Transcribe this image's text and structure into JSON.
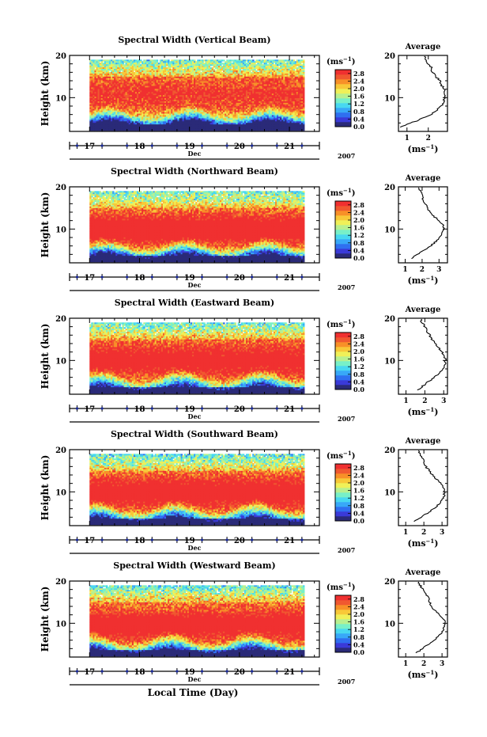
{
  "chart_data": {
    "type": "heatmap",
    "xlabel": "Local Time (Day)",
    "month_label": "Dec",
    "year_label": "2007",
    "x_ticks": [
      "17",
      "18",
      "19",
      "20",
      "21"
    ],
    "xlim": [
      16.6,
      21.6
    ],
    "data_xlim": [
      17.0,
      21.3
    ],
    "ylabel": "Height (km)",
    "ylim": [
      2,
      20
    ],
    "y_ticks": [
      10,
      20
    ],
    "unit_label": "(ms",
    "unit_exp": "−1",
    "colorbar": {
      "ticks": [
        "0.0",
        "0.4",
        "0.8",
        "1.2",
        "1.6",
        "2.0",
        "2.4",
        "2.8"
      ],
      "tick_values": [
        0,
        0.4,
        0.8,
        1.2,
        1.6,
        2.0,
        2.4,
        2.8
      ],
      "range": [
        0,
        3.0
      ],
      "colors": [
        "#2a2a78",
        "#3a3ad8",
        "#2f6ff0",
        "#38a8f8",
        "#48d8f0",
        "#78f0c8",
        "#b8f090",
        "#f0f058",
        "#f8c838",
        "#f89028",
        "#f05830",
        "#f03030"
      ]
    },
    "panels": [
      {
        "title": "Spectral Width (Vertical Beam)",
        "avg_title": "Average",
        "avg_xlim": [
          0.6,
          2.9
        ],
        "avg_x_ticks": [
          1,
          2
        ],
        "avg_profile": [
          {
            "h": 3.0,
            "v": 0.7
          },
          {
            "h": 4.0,
            "v": 1.2
          },
          {
            "h": 5.0,
            "v": 1.7
          },
          {
            "h": 6.0,
            "v": 2.1
          },
          {
            "h": 7.0,
            "v": 2.4
          },
          {
            "h": 8.0,
            "v": 2.6
          },
          {
            "h": 9.0,
            "v": 2.7
          },
          {
            "h": 10.0,
            "v": 2.75
          },
          {
            "h": 11.0,
            "v": 2.8
          },
          {
            "h": 12.0,
            "v": 2.75
          },
          {
            "h": 13.0,
            "v": 2.6
          },
          {
            "h": 14.0,
            "v": 2.55
          },
          {
            "h": 15.0,
            "v": 2.35
          },
          {
            "h": 16.0,
            "v": 2.2
          },
          {
            "h": 17.0,
            "v": 2.15
          },
          {
            "h": 18.0,
            "v": 2.0
          },
          {
            "h": 19.0,
            "v": 1.9
          },
          {
            "h": 19.8,
            "v": 1.8
          }
        ]
      },
      {
        "title": "Spectral Width (Northward Beam)",
        "avg_title": "Average",
        "avg_xlim": [
          0.6,
          3.5
        ],
        "avg_x_ticks": [
          1,
          2,
          3
        ],
        "avg_profile": [
          {
            "h": 3.0,
            "v": 1.4
          },
          {
            "h": 4.0,
            "v": 1.7
          },
          {
            "h": 5.0,
            "v": 2.1
          },
          {
            "h": 6.0,
            "v": 2.5
          },
          {
            "h": 7.0,
            "v": 2.8
          },
          {
            "h": 8.0,
            "v": 3.05
          },
          {
            "h": 9.0,
            "v": 3.2
          },
          {
            "h": 10.0,
            "v": 3.3
          },
          {
            "h": 11.0,
            "v": 3.25
          },
          {
            "h": 12.0,
            "v": 3.0
          },
          {
            "h": 13.0,
            "v": 2.7
          },
          {
            "h": 14.0,
            "v": 2.5
          },
          {
            "h": 15.0,
            "v": 2.3
          },
          {
            "h": 16.0,
            "v": 2.2
          },
          {
            "h": 17.0,
            "v": 2.0
          },
          {
            "h": 18.0,
            "v": 2.1
          },
          {
            "h": 19.0,
            "v": 1.9
          },
          {
            "h": 19.8,
            "v": 1.8
          }
        ]
      },
      {
        "title": "Spectral Width (Eastward Beam)",
        "avg_title": "Average",
        "avg_xlim": [
          0.6,
          3.2
        ],
        "avg_x_ticks": [
          1,
          2,
          3
        ],
        "avg_profile": [
          {
            "h": 3.0,
            "v": 1.6
          },
          {
            "h": 4.0,
            "v": 1.9
          },
          {
            "h": 5.0,
            "v": 2.2
          },
          {
            "h": 6.0,
            "v": 2.5
          },
          {
            "h": 7.0,
            "v": 2.75
          },
          {
            "h": 8.0,
            "v": 2.95
          },
          {
            "h": 9.0,
            "v": 3.05
          },
          {
            "h": 10.0,
            "v": 3.1
          },
          {
            "h": 11.0,
            "v": 3.05
          },
          {
            "h": 12.0,
            "v": 2.9
          },
          {
            "h": 13.0,
            "v": 2.75
          },
          {
            "h": 14.0,
            "v": 2.55
          },
          {
            "h": 15.0,
            "v": 2.35
          },
          {
            "h": 16.0,
            "v": 2.25
          },
          {
            "h": 17.0,
            "v": 2.1
          },
          {
            "h": 18.0,
            "v": 2.0
          },
          {
            "h": 19.0,
            "v": 1.85
          },
          {
            "h": 19.8,
            "v": 1.8
          }
        ]
      },
      {
        "title": "Spectral Width (Southward Beam)",
        "avg_title": "Average",
        "avg_xlim": [
          0.6,
          3.3
        ],
        "avg_x_ticks": [
          1,
          2,
          3
        ],
        "avg_profile": [
          {
            "h": 3.0,
            "v": 1.5
          },
          {
            "h": 4.0,
            "v": 1.85
          },
          {
            "h": 5.0,
            "v": 2.2
          },
          {
            "h": 6.0,
            "v": 2.55
          },
          {
            "h": 7.0,
            "v": 2.8
          },
          {
            "h": 8.0,
            "v": 3.0
          },
          {
            "h": 9.0,
            "v": 3.1
          },
          {
            "h": 10.0,
            "v": 3.15
          },
          {
            "h": 11.0,
            "v": 3.1
          },
          {
            "h": 12.0,
            "v": 2.95
          },
          {
            "h": 13.0,
            "v": 2.7
          },
          {
            "h": 14.0,
            "v": 2.5
          },
          {
            "h": 15.0,
            "v": 2.3
          },
          {
            "h": 16.0,
            "v": 2.1
          },
          {
            "h": 17.0,
            "v": 2.0
          },
          {
            "h": 18.0,
            "v": 1.95
          },
          {
            "h": 19.0,
            "v": 1.8
          },
          {
            "h": 19.8,
            "v": 1.7
          }
        ]
      },
      {
        "title": "Spectral Width (Westward Beam)",
        "avg_title": "Average",
        "avg_xlim": [
          0.6,
          3.3
        ],
        "avg_x_ticks": [
          1,
          2,
          3
        ],
        "avg_profile": [
          {
            "h": 3.0,
            "v": 1.6
          },
          {
            "h": 4.0,
            "v": 1.9
          },
          {
            "h": 5.0,
            "v": 2.25
          },
          {
            "h": 6.0,
            "v": 2.6
          },
          {
            "h": 7.0,
            "v": 2.8
          },
          {
            "h": 8.0,
            "v": 3.0
          },
          {
            "h": 9.0,
            "v": 3.1
          },
          {
            "h": 10.0,
            "v": 3.15
          },
          {
            "h": 11.0,
            "v": 3.1
          },
          {
            "h": 12.0,
            "v": 2.85
          },
          {
            "h": 13.0,
            "v": 2.6
          },
          {
            "h": 14.0,
            "v": 2.45
          },
          {
            "h": 15.0,
            "v": 2.3
          },
          {
            "h": 16.0,
            "v": 2.25
          },
          {
            "h": 17.0,
            "v": 2.1
          },
          {
            "h": 18.0,
            "v": 1.95
          },
          {
            "h": 19.0,
            "v": 1.8
          },
          {
            "h": 19.8,
            "v": 1.7
          }
        ]
      }
    ]
  }
}
